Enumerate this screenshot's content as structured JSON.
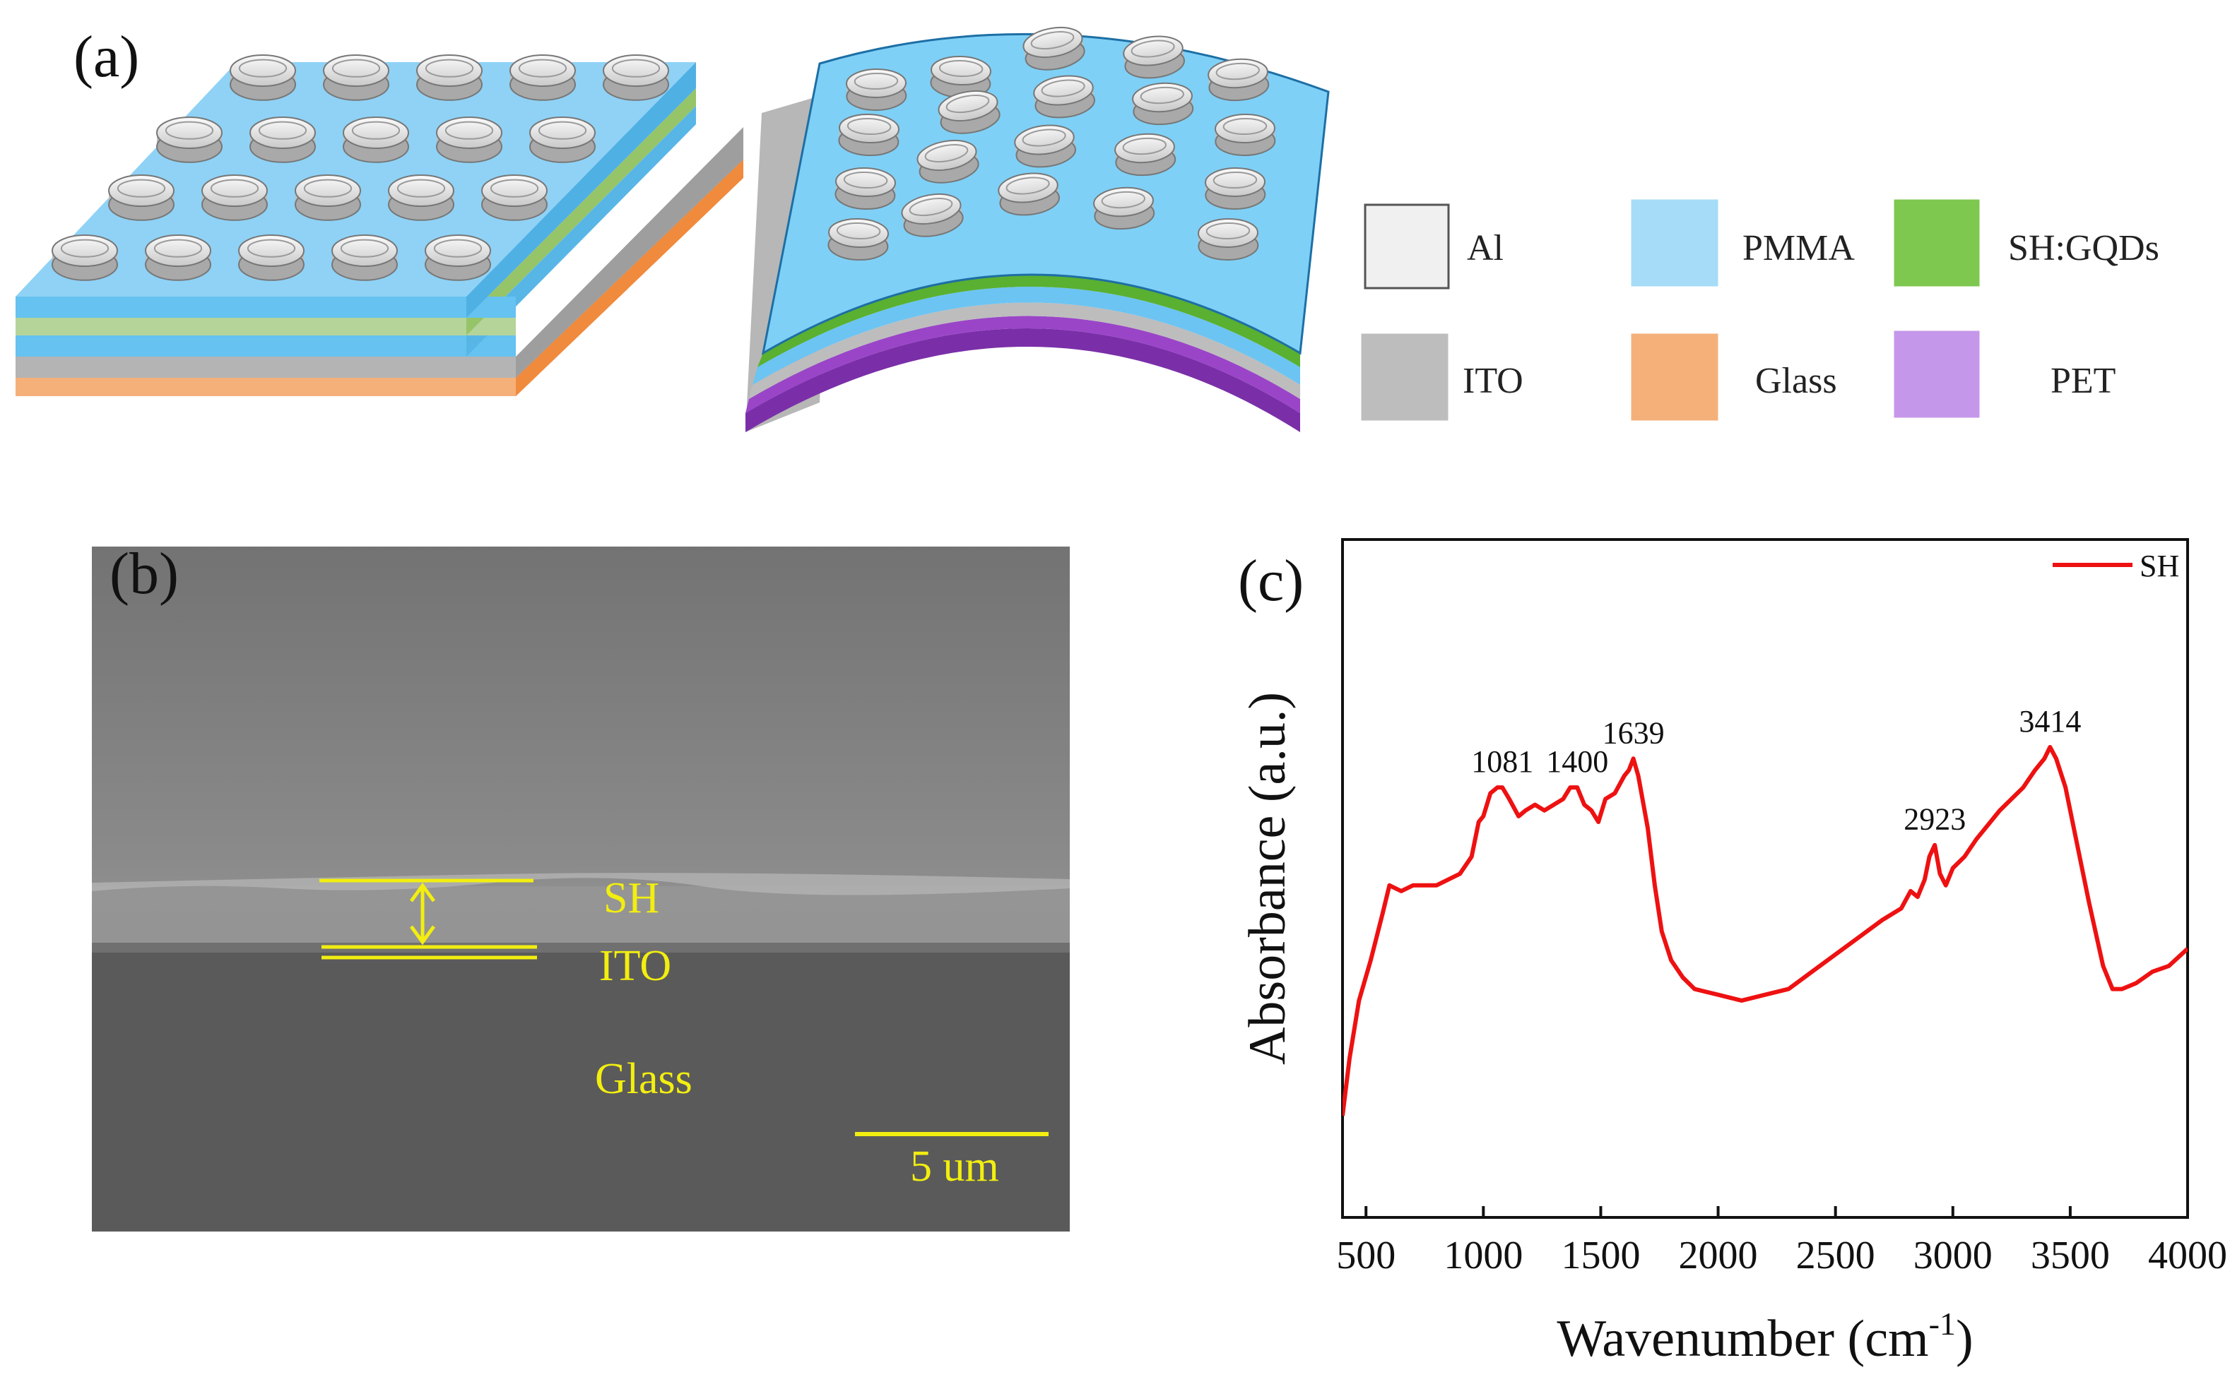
{
  "panels": {
    "a": "(a)",
    "b": "(b)",
    "c": "(c)"
  },
  "legend": [
    {
      "label": "Al",
      "color": "#f0f0f0",
      "border": "#555555"
    },
    {
      "label": "PMMA",
      "color": "#a6dcf7",
      "border": "#a6dcf7"
    },
    {
      "label": "SH:GQDs",
      "color": "#7ec850",
      "border": "#7ec850"
    },
    {
      "label": "ITO",
      "color": "#bdbdbd",
      "border": "#bdbdbd"
    },
    {
      "label": "Glass",
      "color": "#f5b07a",
      "border": "#f5b07a"
    },
    {
      "label": "PET",
      "color": "#c597ea",
      "border": "#c597ea"
    }
  ],
  "sem": {
    "layer_sh": "SH",
    "layer_ito": "ITO",
    "layer_glass": "Glass",
    "scale_bar": "5 um"
  },
  "chart_data": {
    "type": "line",
    "title": "",
    "xlabel_main": "Wavenumber (cm",
    "xlabel_sup": "-1",
    "xlabel_close": ")",
    "ylabel": "Absorbance (a.u.)",
    "xlim": [
      400,
      4000
    ],
    "ylim": [
      0,
      100
    ],
    "xticks": [
      "500",
      "1000",
      "1500",
      "2000",
      "2500",
      "3000",
      "3500",
      "4000"
    ],
    "legend": "SH",
    "legend_position": "top-right",
    "color": "#ee1111",
    "series": [
      {
        "name": "SH",
        "x": [
          400,
          430,
          470,
          520,
          570,
          600,
          650,
          700,
          800,
          900,
          950,
          980,
          1000,
          1030,
          1060,
          1081,
          1110,
          1150,
          1180,
          1220,
          1260,
          1300,
          1340,
          1370,
          1400,
          1430,
          1460,
          1490,
          1520,
          1560,
          1600,
          1620,
          1639,
          1660,
          1700,
          1730,
          1760,
          1800,
          1850,
          1900,
          2000,
          2100,
          2200,
          2300,
          2400,
          2500,
          2600,
          2700,
          2780,
          2820,
          2850,
          2880,
          2900,
          2923,
          2945,
          2970,
          3000,
          3050,
          3100,
          3200,
          3300,
          3350,
          3390,
          3414,
          3440,
          3480,
          3520,
          3580,
          3640,
          3680,
          3720,
          3780,
          3850,
          3920,
          4000
        ],
        "y": [
          18,
          28,
          38,
          45,
          53,
          58,
          57,
          58,
          58,
          60,
          63,
          69,
          70,
          74,
          75,
          75,
          73,
          70,
          71,
          72,
          71,
          72,
          73,
          75,
          75,
          72,
          71,
          69,
          73,
          74,
          77,
          78,
          80,
          77,
          68,
          58,
          50,
          45,
          42,
          40,
          39,
          38,
          39,
          40,
          43,
          46,
          49,
          52,
          54,
          57,
          56,
          59,
          63,
          65,
          60,
          58,
          61,
          63,
          66,
          71,
          75,
          78,
          80,
          82,
          80,
          75,
          67,
          55,
          44,
          40,
          40,
          41,
          43,
          44,
          47
        ]
      }
    ],
    "peaks": [
      {
        "x": 1081,
        "label": "1081"
      },
      {
        "x": 1400,
        "label": "1400"
      },
      {
        "x": 1639,
        "label": "1639"
      },
      {
        "x": 2923,
        "label": "2923"
      },
      {
        "x": 3414,
        "label": "3414"
      }
    ]
  }
}
